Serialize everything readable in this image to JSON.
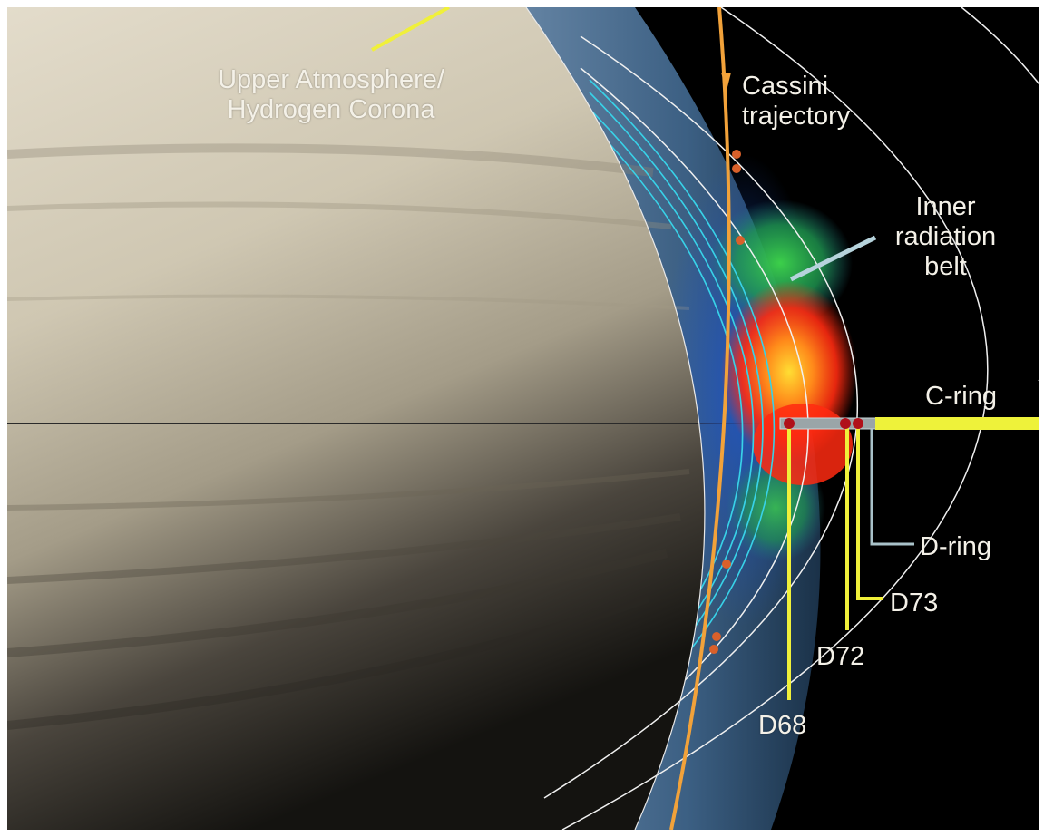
{
  "labels": {
    "upper_atmosphere_line1": "Upper Atmosphere/",
    "upper_atmosphere_line2": "Hydrogen Corona",
    "cassini_line1": "Cassini",
    "cassini_line2": "trajectory",
    "inner_belt_line1": "Inner",
    "inner_belt_line2": "radiation",
    "inner_belt_line3": "belt",
    "c_ring": "C-ring",
    "d_ring": "D-ring",
    "d73": "D73",
    "d72": "D72",
    "d68": "D68"
  },
  "colors": {
    "saturn_light": "#d9d2bd",
    "saturn_dark": "#1d1b18",
    "corona_blue": "#5f86ad",
    "space": "#000000",
    "trajectory": "#f2a23a",
    "trajectory_marker": "#d9602a",
    "radiation_hot": "#ff2a10",
    "radiation_warm": "#ffcc22",
    "radiation_cool": "#1fae48",
    "c_ring": "#eef23a",
    "d_ring": "#a9c2c9",
    "pointer": "#f0f03a",
    "shell_lines": "#38d2e8",
    "orbit_lines": "#ffffff",
    "closest_approach": "#b0101a"
  }
}
